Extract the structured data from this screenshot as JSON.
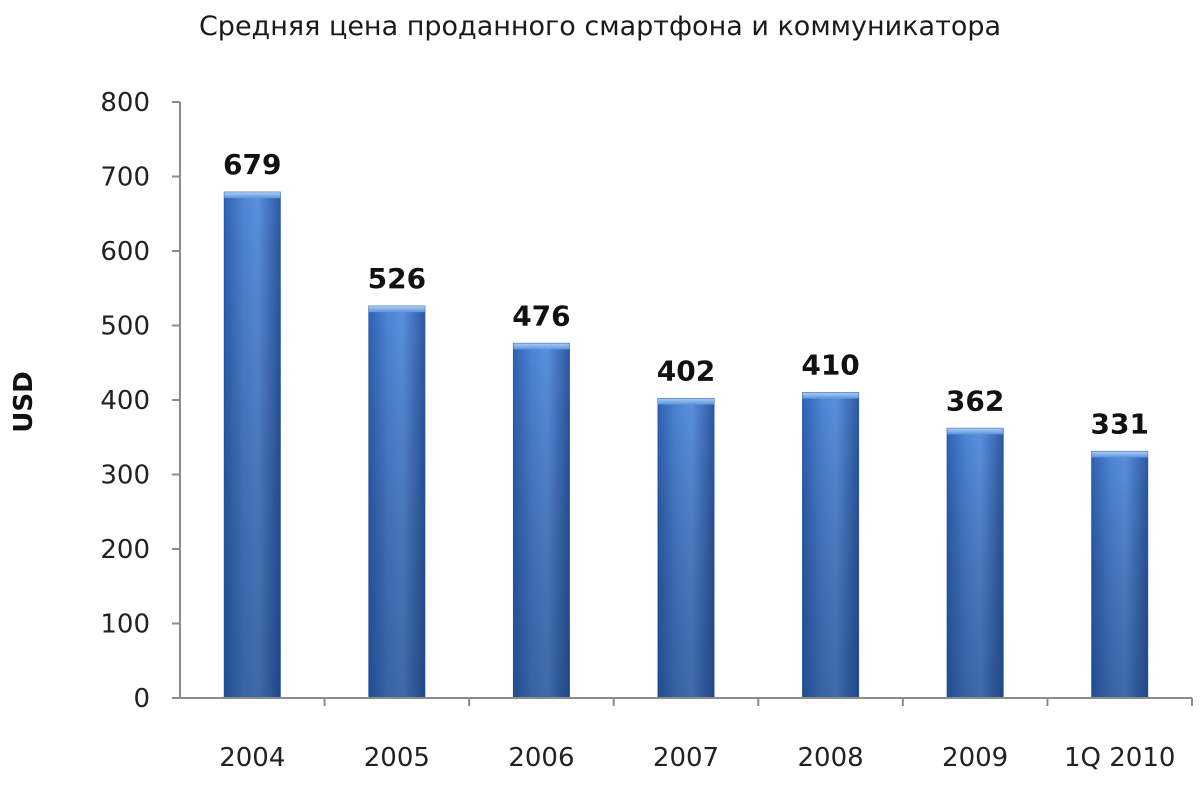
{
  "chart_data": {
    "type": "bar",
    "title": "Средняя цена проданного смартфона и коммуникатора",
    "xlabel": "",
    "ylabel": "USD",
    "categories": [
      "2004",
      "2005",
      "2006",
      "2007",
      "2008",
      "2009",
      "1Q 2010"
    ],
    "values": [
      679,
      526,
      476,
      402,
      410,
      362,
      331
    ],
    "ylim": [
      0,
      800
    ],
    "y_ticks": [
      0,
      100,
      200,
      300,
      400,
      500,
      600,
      700,
      800
    ],
    "grid": false,
    "legend": "none",
    "colors": {
      "bar_top": "#7fb3ec",
      "bar_main": "#4a7fd0",
      "bar_bottom": "#2c5596",
      "bar_edge": "#2b5aa6"
    }
  }
}
